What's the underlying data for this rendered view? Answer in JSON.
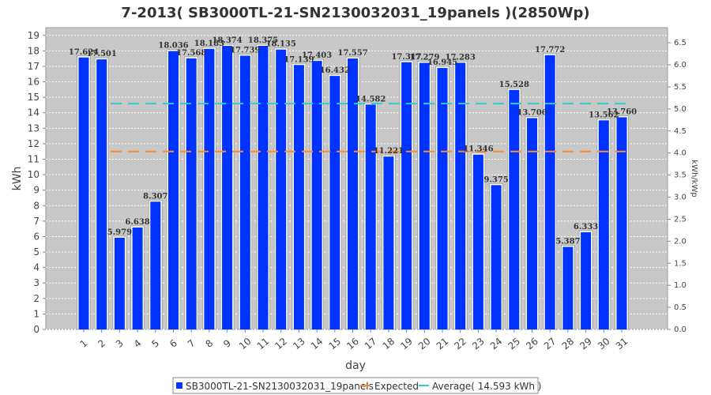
{
  "chart_data": {
    "type": "bar",
    "title": "7-2013( SB3000TL-21-SN2130032031_19panels )(2850Wp)",
    "xlabel": "day",
    "ylabel": "kWh",
    "y2label": "kWh/kWp",
    "ylim": [
      0,
      19.5
    ],
    "y2lim": [
      0,
      6.842
    ],
    "yticks": [
      0,
      1,
      2,
      3,
      4,
      5,
      6,
      7,
      8,
      9,
      10,
      11,
      12,
      13,
      14,
      15,
      16,
      17,
      18,
      19
    ],
    "y2ticks": [
      "0.0",
      "0.5",
      "1.0",
      "1.5",
      "2.0",
      "2.5",
      "3.0",
      "3.5",
      "4.0",
      "4.5",
      "5.0",
      "5.5",
      "6.0",
      "6.5"
    ],
    "categories": [
      "1",
      "2",
      "3",
      "4",
      "5",
      "6",
      "7",
      "8",
      "9",
      "10",
      "11",
      "12",
      "13",
      "14",
      "15",
      "16",
      "17",
      "18",
      "19",
      "20",
      "21",
      "22",
      "23",
      "24",
      "25",
      "26",
      "27",
      "28",
      "29",
      "30",
      "31"
    ],
    "series": [
      {
        "name": "SB3000TL-21-SN2130032031_19panels",
        "values": [
          17.624,
          17.501,
          5.979,
          6.638,
          8.307,
          18.036,
          17.568,
          18.183,
          18.374,
          17.739,
          18.375,
          18.135,
          17.139,
          17.403,
          16.432,
          17.557,
          14.582,
          11.221,
          17.317,
          17.279,
          16.945,
          17.283,
          11.346,
          9.375,
          15.528,
          13.706,
          17.772,
          5.387,
          6.333,
          13.562,
          13.76
        ],
        "labels": [
          "17.624",
          "17.501",
          "5.979",
          "6.638",
          "8.307",
          "18.036",
          "17.568",
          "18.183",
          "18.374",
          "17.739",
          "18.375",
          "18.135",
          "17.139",
          "17.403",
          "16.432",
          "17.557",
          "14.582",
          "11.221",
          "17.317",
          "17.279",
          "16.945",
          "17.283",
          "11.346",
          "9.375",
          "15.528",
          "13.706",
          "17.772",
          "5.387",
          "6.333",
          "13.562",
          "13.760"
        ],
        "color": "#0033ff"
      }
    ],
    "lines": [
      {
        "name": "Expected",
        "value": 11.5,
        "color": "#ff8c29",
        "x_start": "3",
        "x_end": "31"
      },
      {
        "name": "Average( 14.593 kWh )",
        "value": 14.593,
        "color": "#33cccc",
        "x_start": "3",
        "x_end": "31"
      }
    ],
    "legend": [
      "SB3000TL-21-SN2130032031_19panels",
      "Expected",
      "Average( 14.593 kWh )"
    ],
    "legend_position": "bottom",
    "grid": true,
    "plot_background": "#c8c8c8"
  }
}
